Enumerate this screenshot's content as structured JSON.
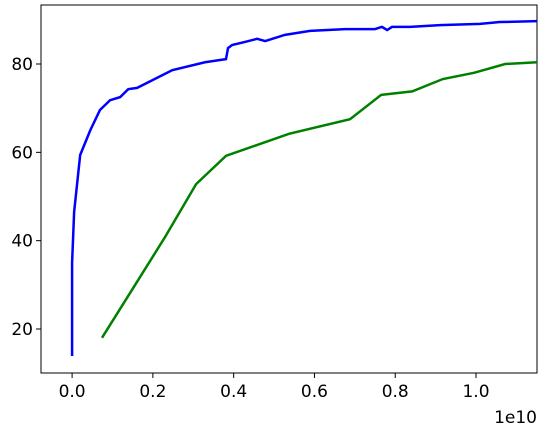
{
  "chart_data": {
    "type": "line",
    "x_offset_label": "1e10",
    "xlim": [
      -0.077,
      1.151
    ],
    "ylim": [
      10.04,
      93.36
    ],
    "xticks": [
      {
        "value": 0,
        "label": "0.0"
      },
      {
        "value": 0.2,
        "label": "0.2"
      },
      {
        "value": 0.4,
        "label": "0.4"
      },
      {
        "value": 0.6,
        "label": "0.6"
      },
      {
        "value": 0.8,
        "label": "0.8"
      },
      {
        "value": 1.0,
        "label": "1.0"
      }
    ],
    "yticks": [
      20,
      40,
      60,
      80
    ],
    "series": [
      {
        "color": "#0000ff",
        "x": [
          0,
          0,
          0.005,
          0.02,
          0.045,
          0.069,
          0.094,
          0.119,
          0.139,
          0.161,
          0.248,
          0.329,
          0.381,
          0.386,
          0.396,
          0.428,
          0.458,
          0.478,
          0.527,
          0.589,
          0.676,
          0.75,
          0.767,
          0.78,
          0.792,
          0.837,
          0.911,
          1.01,
          1.059,
          1.151
        ],
        "values": [
          13.9,
          35,
          46.5,
          59.4,
          65,
          69.6,
          71.8,
          72.5,
          74.3,
          74.6,
          78.6,
          80.4,
          81.1,
          83.6,
          84.3,
          85,
          85.7,
          85.2,
          86.6,
          87.5,
          87.9,
          87.9,
          88.4,
          87.7,
          88.4,
          88.4,
          88.8,
          89.1,
          89.5,
          89.7
        ]
      },
      {
        "color": "#008000",
        "x": [
          0.074,
          0.23,
          0.307,
          0.381,
          0.537,
          0.688,
          0.765,
          0.842,
          0.918,
          0.995,
          1.072,
          1.151
        ],
        "values": [
          18,
          40.8,
          52.8,
          59.2,
          64.2,
          67.5,
          73,
          73.8,
          76.6,
          78,
          80,
          80.4
        ]
      }
    ]
  }
}
